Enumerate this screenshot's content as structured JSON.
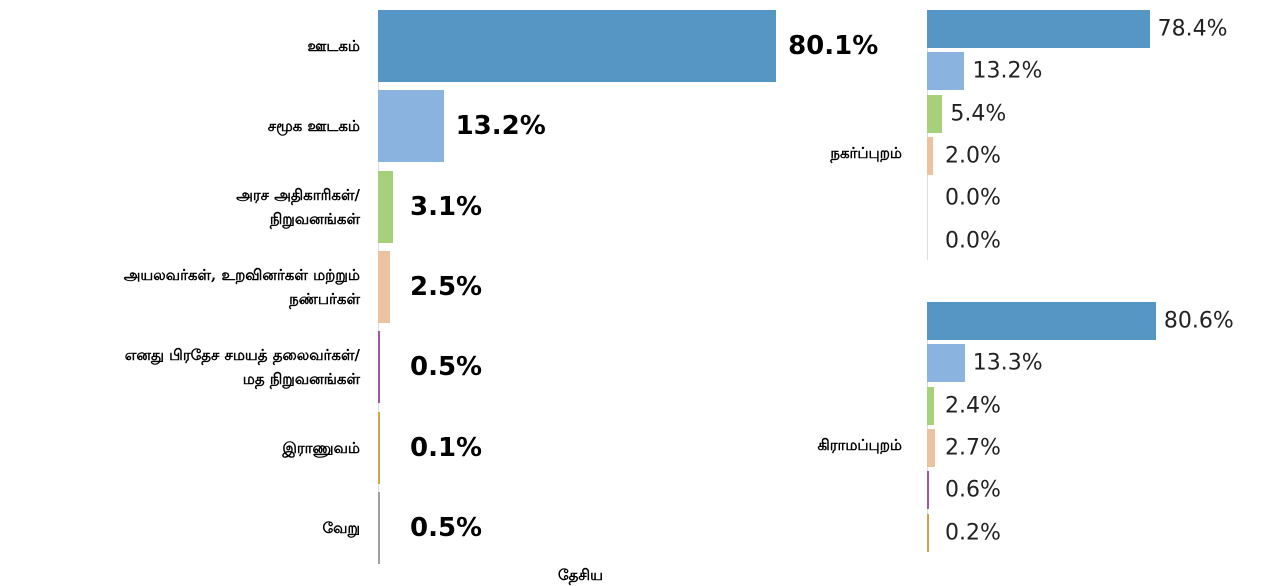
{
  "chart_data": [
    {
      "type": "bar",
      "orientation": "horizontal",
      "x_label": "தேசிய",
      "categories": [
        "ஊடகம்",
        "சமூக ஊடகம்",
        "அரச அதிகாரிகள்/\nநிறுவனங்கள்",
        "அயலவர்கள், உறவினர்கள் மற்றும்\nநண்பர்கள்",
        "எனது பிரதேச சமயத் தலைவர்கள்/\nமத நிறுவனங்கள்",
        "இராணுவம்",
        "வேறு"
      ],
      "values": [
        80.1,
        13.2,
        3.1,
        2.5,
        0.5,
        0.1,
        0.5
      ],
      "value_labels": [
        "80.1%",
        "13.2%",
        "3.1%",
        "2.5%",
        "0.5%",
        "0.1%",
        "0.5%"
      ],
      "colors": [
        "#5596c4",
        "#8ab4df",
        "#a6d17a",
        "#ecc2a0",
        "#9b59a0",
        "#c9a44a",
        "#a0a0a0"
      ]
    },
    {
      "type": "bar",
      "orientation": "horizontal",
      "label": "நகர்ப்புறம்",
      "values": [
        78.4,
        13.2,
        5.4,
        2.0,
        0.0,
        0.0
      ],
      "value_labels": [
        "78.4%",
        "13.2%",
        "5.4%",
        "2.0%",
        "0.0%",
        "0.0%"
      ],
      "colors": [
        "#5596c4",
        "#8ab4df",
        "#a6d17a",
        "#ecc2a0",
        "#9b59a0",
        "#c9a44a"
      ]
    },
    {
      "type": "bar",
      "orientation": "horizontal",
      "label": "கிராமப்புறம்",
      "values": [
        80.6,
        13.3,
        2.4,
        2.7,
        0.6,
        0.2
      ],
      "value_labels": [
        "80.6%",
        "13.3%",
        "2.4%",
        "2.7%",
        "0.6%",
        "0.2%"
      ],
      "colors": [
        "#5596c4",
        "#8ab4df",
        "#a6d17a",
        "#ecc2a0",
        "#9b59a0",
        "#c9a44a"
      ]
    }
  ]
}
